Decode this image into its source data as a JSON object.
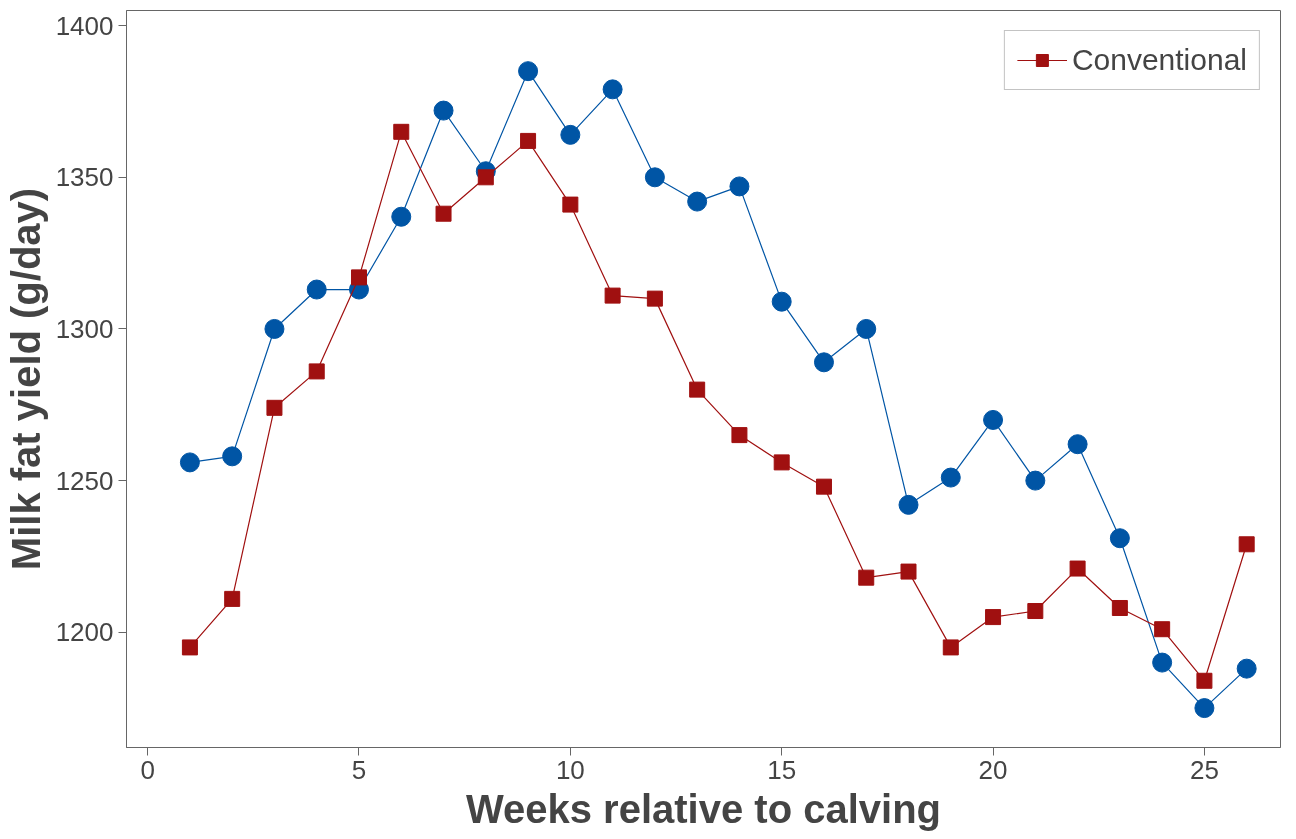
{
  "chart_data": {
    "type": "line",
    "xlabel": "Weeks relative to calving",
    "ylabel": "Milk fat yield (g/day)",
    "x": [
      1,
      2,
      3,
      4,
      5,
      6,
      7,
      8,
      9,
      10,
      11,
      12,
      13,
      14,
      15,
      16,
      17,
      18,
      19,
      20,
      21,
      22,
      23,
      24,
      25,
      26
    ],
    "series": [
      {
        "color": "#0055a5",
        "marker": "circle",
        "values": [
          1256,
          1258,
          1300,
          1313,
          1313,
          1337,
          1372,
          1352,
          1385,
          1364,
          1379,
          1350,
          1342,
          1347,
          1309,
          1289,
          1300,
          1242,
          1251,
          1270,
          1250,
          1262,
          1231,
          1190,
          1175,
          1188
        ]
      },
      {
        "name": "Conventional",
        "color": "#a01010",
        "marker": "square",
        "values": [
          1195,
          1211,
          1274,
          1286,
          1317,
          1365,
          1338,
          1350,
          1362,
          1341,
          1311,
          1310,
          1280,
          1265,
          1256,
          1248,
          1218,
          1220,
          1195,
          1205,
          1207,
          1221,
          1208,
          1201,
          1184,
          1229
        ]
      }
    ],
    "xlim": [
      -0.5,
      26.8
    ],
    "ylim": [
      1162,
      1405
    ],
    "xticks": [
      0,
      5,
      10,
      15,
      20,
      25
    ],
    "yticks": [
      1200,
      1250,
      1300,
      1350,
      1400
    ],
    "grid": false,
    "legend": "top right",
    "line_style": "solid"
  }
}
